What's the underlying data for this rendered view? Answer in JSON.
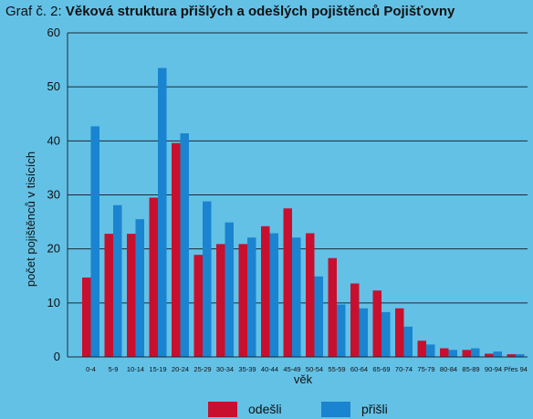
{
  "chart_data": {
    "type": "bar",
    "title_prefix": "Graf č. 2:",
    "title": "Věková struktura přišlých a odešlých pojištěnců Pojišťovny",
    "xlabel": "věk",
    "ylabel": "počet pojištěnců v tisících",
    "ylim": [
      0,
      60
    ],
    "yticks": [
      0,
      10,
      20,
      30,
      40,
      50,
      60
    ],
    "grid": true,
    "legend_position": "bottom",
    "categories": [
      "0-4",
      "5-9",
      "10-14",
      "15-19",
      "20-24",
      "25-29",
      "30-34",
      "35-39",
      "40-44",
      "45-49",
      "50-54",
      "55-59",
      "60-64",
      "65-69",
      "70-74",
      "75-79",
      "80-84",
      "85-89",
      "90-94",
      "Přes 94"
    ],
    "series": [
      {
        "name": "odešli",
        "color": "#c8102e",
        "values": [
          14.7,
          22.8,
          22.8,
          29.5,
          39.6,
          18.9,
          20.9,
          20.9,
          24.2,
          27.5,
          22.9,
          18.3,
          13.6,
          12.3,
          9.0,
          3.0,
          1.6,
          1.3,
          0.6,
          0.5
        ]
      },
      {
        "name": "přišli",
        "color": "#1a84d0",
        "values": [
          42.7,
          28.1,
          25.5,
          53.5,
          41.4,
          28.8,
          24.9,
          22.1,
          22.9,
          22.1,
          14.9,
          9.7,
          9.0,
          8.3,
          5.6,
          2.3,
          1.3,
          1.6,
          1.0,
          0.5
        ]
      }
    ]
  }
}
